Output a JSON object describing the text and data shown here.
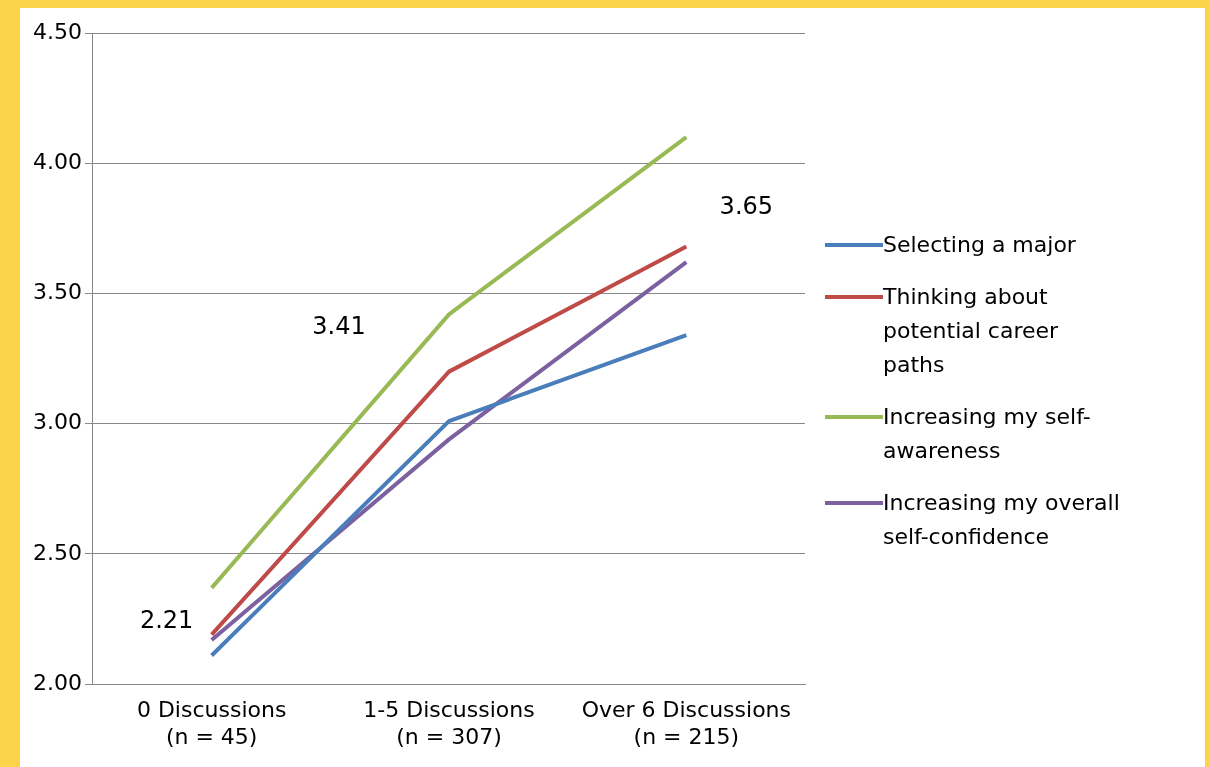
{
  "chart_data": {
    "type": "line",
    "categories": [
      "0 Discussions\n(n = 45)",
      "1-5 Discussions\n(n = 307)",
      "Over 6 Discussions\n(n = 215)"
    ],
    "series": [
      {
        "name": "Selecting a major",
        "color": "#4a7ebb",
        "values": [
          2.11,
          3.01,
          3.34
        ]
      },
      {
        "name": "Thinking about potential career paths",
        "color": "#be4b48",
        "values": [
          2.19,
          3.2,
          3.68
        ]
      },
      {
        "name": "Increasing my self-awareness",
        "color": "#98b954",
        "values": [
          2.37,
          3.42,
          4.1
        ]
      },
      {
        "name": "Increasing my overall self-confidence",
        "color": "#7d60a0",
        "values": [
          2.17,
          2.94,
          3.62
        ]
      }
    ],
    "annotations": [
      "2.21",
      "3.41",
      "3.65"
    ],
    "ylim": [
      2,
      4.5
    ],
    "yticks": [
      {
        "value": 2,
        "label": "2.00"
      },
      {
        "value": 2.5,
        "label": "2.50"
      },
      {
        "value": 3,
        "label": "3.00"
      },
      {
        "value": 3.5,
        "label": "3.50"
      },
      {
        "value": 4,
        "label": "4.00"
      },
      {
        "value": 4.5,
        "label": "4.50"
      }
    ],
    "grid": "y",
    "legend": "right",
    "marker": "none"
  }
}
